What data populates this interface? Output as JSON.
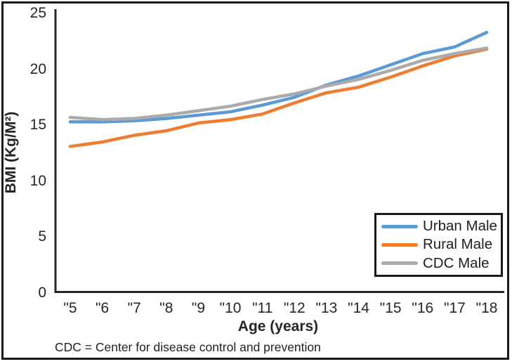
{
  "figure": {
    "footnote": "CDC = Center for disease control and prevention"
  },
  "colors": {
    "axis": "#262626",
    "text": "#262626",
    "frame": "#1a1a1a",
    "background": "#ffffff"
  },
  "chart_data": {
    "type": "line",
    "title": "",
    "xlabel": "Age (years)",
    "ylabel": "BMI (Kg/M²)",
    "x_tick_labels": [
      "\"5",
      "\"6",
      "\"7",
      "\"8",
      "\"9",
      "\"10",
      "\"11",
      "\"12",
      "\"13",
      "\"14",
      "\"15",
      "\"16",
      "\"17",
      "\"18"
    ],
    "x": [
      5,
      6,
      7,
      8,
      9,
      10,
      11,
      12,
      13,
      14,
      15,
      16,
      17,
      18
    ],
    "y_ticks": [
      0,
      5,
      10,
      15,
      20,
      25
    ],
    "ylim": [
      0,
      25
    ],
    "grid": false,
    "legend_position": "lower right",
    "series": [
      {
        "name": "Urban Male",
        "color": "#5B9BD5",
        "values": [
          15.3,
          15.3,
          15.4,
          15.6,
          15.9,
          16.2,
          16.8,
          17.5,
          18.6,
          19.4,
          20.4,
          21.4,
          22.0,
          23.3
        ]
      },
      {
        "name": "Rural Male",
        "color": "#ED7D31",
        "values": [
          13.1,
          13.5,
          14.1,
          14.5,
          15.2,
          15.5,
          16.0,
          17.0,
          17.9,
          18.4,
          19.3,
          20.3,
          21.2,
          21.8
        ]
      },
      {
        "name": "CDC Male",
        "color": "#ABABAB",
        "values": [
          15.7,
          15.5,
          15.6,
          15.9,
          16.3,
          16.7,
          17.3,
          17.8,
          18.5,
          19.1,
          19.9,
          20.8,
          21.4,
          21.9
        ]
      }
    ]
  }
}
